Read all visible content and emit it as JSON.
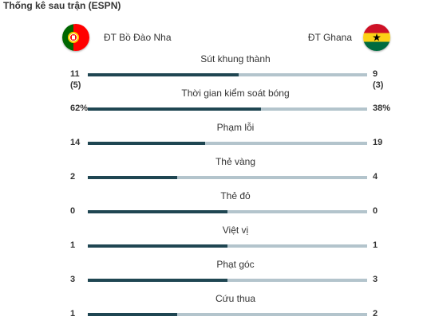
{
  "header": {
    "title": "Thống kê sau trận (ESPN)"
  },
  "teams": {
    "home": {
      "name": "ĐT Bồ Đào Nha",
      "flag_icon": "portugal-flag-icon"
    },
    "away": {
      "name": "ĐT Ghana",
      "flag_icon": "ghana-flag-icon"
    }
  },
  "colors": {
    "home_bar": "#1f4652",
    "away_bar": "#b3c4cc"
  },
  "stats": [
    {
      "label": "Sút khung thành",
      "home": "11",
      "away": "9",
      "home_sub": "(5)",
      "away_sub": "(3)",
      "home_share": 0.54
    },
    {
      "label": "Thời gian kiểm soát bóng",
      "home": "62%",
      "away": "38%",
      "home_share": 0.62
    },
    {
      "label": "Phạm lỗi",
      "home": "14",
      "away": "19",
      "home_share": 0.42
    },
    {
      "label": "Thẻ vàng",
      "home": "2",
      "away": "4",
      "home_share": 0.32
    },
    {
      "label": "Thẻ đỏ",
      "home": "0",
      "away": "0",
      "home_share": 0.5
    },
    {
      "label": "Việt vị",
      "home": "1",
      "away": "1",
      "home_share": 0.5
    },
    {
      "label": "Phạt góc",
      "home": "3",
      "away": "3",
      "home_share": 0.5
    },
    {
      "label": "Cứu thua",
      "home": "1",
      "away": "2",
      "home_share": 0.32
    }
  ]
}
